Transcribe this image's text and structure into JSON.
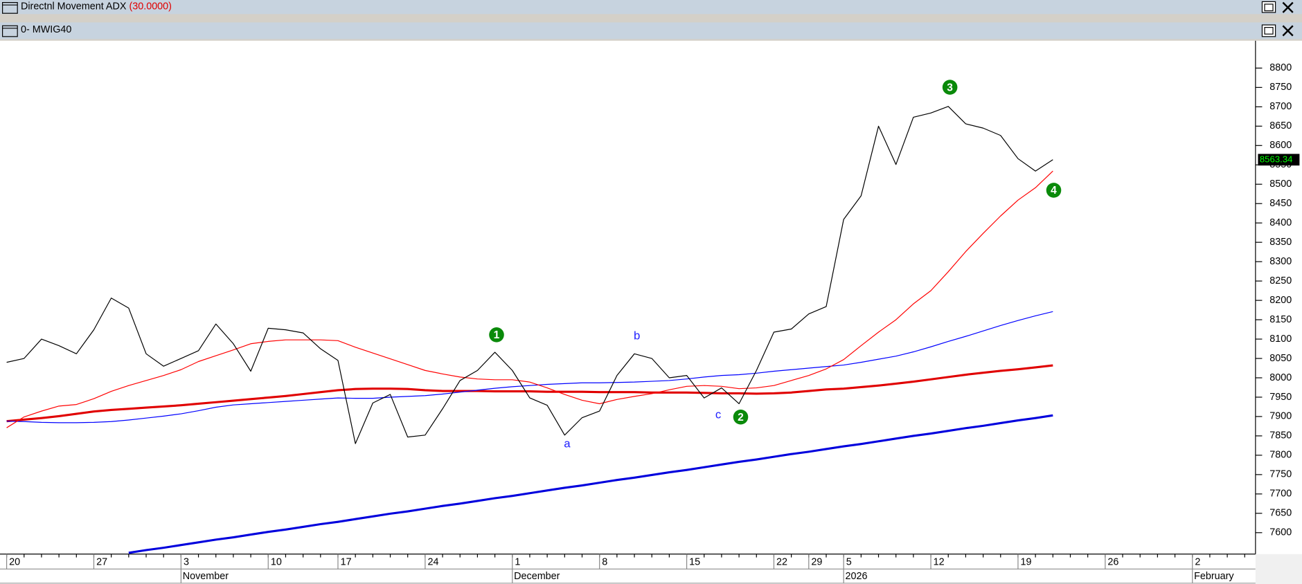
{
  "window_bars": {
    "indicator_title": "Directnl Movement ADX",
    "indicator_param": "(30.0000)"
  },
  "chart_data": {
    "type": "line",
    "title": "0- MWIG40",
    "categories": [
      "20",
      null,
      null,
      null,
      null,
      "27",
      null,
      null,
      null,
      null,
      "3",
      null,
      null,
      null,
      null,
      "10",
      null,
      null,
      null,
      "17",
      null,
      null,
      null,
      null,
      "24",
      null,
      null,
      null,
      null,
      "1",
      null,
      null,
      null,
      null,
      "8",
      null,
      null,
      null,
      null,
      "15",
      null,
      null,
      null,
      null,
      "22",
      null,
      "29",
      null,
      "5",
      null,
      null,
      null,
      null,
      "12",
      null,
      null,
      null,
      null,
      "19",
      null,
      null,
      null,
      null,
      "26",
      null,
      null,
      null,
      null,
      "2",
      null,
      null,
      null
    ],
    "months": [
      "November",
      "December",
      "2026",
      "February"
    ],
    "series": [
      {
        "color": "#000000",
        "values": [
          8040,
          8050,
          8100,
          8083,
          8062,
          8124,
          8206,
          8180,
          8062,
          8030,
          8050,
          8070,
          8139,
          8088,
          8017,
          8128,
          8124,
          8116,
          8075,
          8045,
          7830,
          7935,
          7957,
          7847,
          7852,
          7920,
          7993,
          8019,
          8066,
          8019,
          7948,
          7929,
          7852,
          7897,
          7914,
          8006,
          8062,
          8050,
          8000,
          8006,
          7948,
          7974,
          7933,
          8019,
          8118,
          8126,
          8165,
          8184,
          8409,
          8470,
          8650,
          8551,
          8673,
          8684,
          8701,
          8656,
          8645,
          8626,
          8566,
          8534,
          8563.34,
          null,
          null,
          null,
          null,
          null,
          null,
          null,
          null,
          null,
          null,
          null
        ]
      },
      {
        "color": "#ff0000",
        "values": [
          7871,
          7899,
          7914,
          7927,
          7931,
          7946,
          7965,
          7980,
          7993,
          8006,
          8021,
          8042,
          8057,
          8072,
          8088,
          8094,
          8098,
          8098,
          8098,
          8096,
          8079,
          8064,
          8049,
          8034,
          8019,
          8010,
          8002,
          7997,
          7995,
          7995,
          7989,
          7974,
          7957,
          7942,
          7933,
          7944,
          7952,
          7959,
          7969,
          7978,
          7980,
          7978,
          7972,
          7974,
          7980,
          7993,
          8006,
          8023,
          8047,
          8083,
          8118,
          8150,
          8191,
          8225,
          8274,
          8326,
          8373,
          8418,
          8459,
          8491,
          8534,
          null,
          null,
          null,
          null,
          null,
          null,
          null,
          null,
          null,
          null,
          null
        ]
      },
      {
        "color": "#e00000",
        "values": [
          7888,
          7892,
          7896,
          7901,
          7907,
          7913,
          7917,
          7920,
          7923,
          7926,
          7929,
          7933,
          7937,
          7941,
          7945,
          7949,
          7953,
          7958,
          7963,
          7968,
          7971,
          7972,
          7972,
          7971,
          7968,
          7966,
          7966,
          7966,
          7965,
          7965,
          7965,
          7964,
          7964,
          7964,
          7963,
          7963,
          7963,
          7962,
          7962,
          7962,
          7961,
          7960,
          7960,
          7959,
          7960,
          7962,
          7966,
          7970,
          7972,
          7976,
          7980,
          7985,
          7990,
          7996,
          8002,
          8008,
          8013,
          8018,
          8022,
          8027,
          8032,
          null,
          null,
          null,
          null,
          null,
          null,
          null,
          null,
          null,
          null,
          null
        ]
      },
      {
        "color": "#0000ff",
        "values": [
          7888,
          7887,
          7885,
          7884,
          7884,
          7885,
          7887,
          7891,
          7896,
          7901,
          7907,
          7915,
          7924,
          7930,
          7933,
          7936,
          7939,
          7942,
          7945,
          7948,
          7947,
          7947,
          7950,
          7952,
          7954,
          7958,
          7963,
          7968,
          7973,
          7977,
          7980,
          7983,
          7985,
          7987,
          7987,
          7988,
          7989,
          7991,
          7993,
          7997,
          8002,
          8006,
          8008,
          8012,
          8017,
          8021,
          8025,
          8029,
          8033,
          8040,
          8048,
          8056,
          8067,
          8080,
          8094,
          8107,
          8121,
          8135,
          8148,
          8160,
          8171,
          null,
          null,
          null,
          null,
          null,
          null,
          null,
          null,
          null,
          null,
          null
        ]
      },
      {
        "color": "#0000dd",
        "values": [
          null,
          null,
          null,
          null,
          null,
          null,
          null,
          7548,
          7555,
          7561,
          7568,
          7575,
          7582,
          7588,
          7595,
          7602,
          7608,
          7615,
          7622,
          7628,
          7635,
          7642,
          7649,
          7655,
          7662,
          7669,
          7675,
          7682,
          7689,
          7695,
          7702,
          7709,
          7716,
          7722,
          7729,
          7736,
          7742,
          7749,
          7756,
          7762,
          7769,
          7776,
          7783,
          7789,
          7796,
          7803,
          7809,
          7816,
          7823,
          7829,
          7836,
          7843,
          7850,
          7856,
          7863,
          7870,
          7876,
          7883,
          7890,
          7896,
          7903,
          null,
          null,
          null,
          null,
          null,
          null,
          null,
          null,
          null,
          null,
          null
        ]
      }
    ],
    "last_value": 8563.34,
    "annotations": [
      "1",
      "2",
      "3",
      "4",
      "a",
      "b",
      "c"
    ],
    "ylim": [
      7544,
      8869
    ],
    "yticks": [
      7600,
      7650,
      7700,
      7750,
      7800,
      7850,
      7900,
      7950,
      8000,
      8050,
      8100,
      8150,
      8200,
      8250,
      8300,
      8350,
      8400,
      8450,
      8500,
      8550,
      8600,
      8650,
      8700,
      8750,
      8800
    ]
  }
}
